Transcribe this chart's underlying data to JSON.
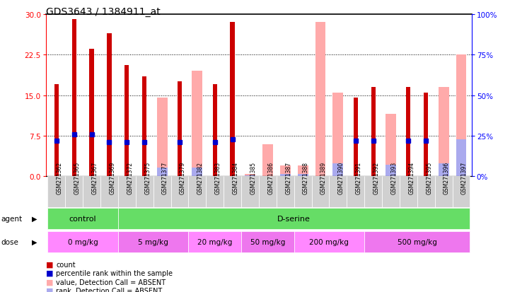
{
  "title": "GDS3643 / 1384911_at",
  "samples": [
    "GSM271362",
    "GSM271365",
    "GSM271367",
    "GSM271369",
    "GSM271372",
    "GSM271375",
    "GSM271377",
    "GSM271379",
    "GSM271382",
    "GSM271383",
    "GSM271384",
    "GSM271385",
    "GSM271386",
    "GSM271387",
    "GSM271388",
    "GSM271389",
    "GSM271390",
    "GSM271391",
    "GSM271392",
    "GSM271393",
    "GSM271394",
    "GSM271395",
    "GSM271396",
    "GSM271397"
  ],
  "count": [
    17.0,
    29.0,
    23.5,
    26.5,
    20.5,
    18.5,
    null,
    17.5,
    null,
    17.0,
    28.5,
    null,
    null,
    null,
    null,
    null,
    null,
    14.5,
    16.5,
    null,
    16.5,
    15.5,
    null,
    null
  ],
  "rank": [
    22,
    26,
    26,
    21,
    21,
    21,
    null,
    21,
    null,
    21,
    23,
    null,
    null,
    null,
    null,
    null,
    null,
    22,
    22,
    null,
    22,
    22,
    null,
    null
  ],
  "absent_value": [
    null,
    null,
    null,
    null,
    null,
    null,
    14.5,
    null,
    19.5,
    null,
    null,
    0.5,
    6.0,
    2.0,
    2.0,
    28.5,
    15.5,
    null,
    null,
    11.5,
    null,
    null,
    16.5,
    22.5
  ],
  "absent_rank": [
    null,
    null,
    null,
    null,
    null,
    null,
    5.5,
    null,
    5.5,
    null,
    null,
    0.5,
    null,
    1.5,
    1.5,
    null,
    8.0,
    null,
    null,
    7.0,
    null,
    null,
    8.0,
    23.0
  ],
  "ylim_left": [
    0,
    30
  ],
  "ylim_right": [
    0,
    100
  ],
  "yticks_left": [
    0,
    7.5,
    15,
    22.5,
    30
  ],
  "yticks_right": [
    0,
    25,
    50,
    75,
    100
  ],
  "count_color": "#cc0000",
  "absent_value_color": "#ffaaaa",
  "rank_color": "#0000cc",
  "absent_rank_color": "#aaaaee",
  "agent_color": "#66dd66",
  "dose_colors": [
    "#ff88ff",
    "#ee77ee",
    "#ff88ff",
    "#ee77ee",
    "#ff88ff",
    "#ee77ee"
  ],
  "dose_labels": [
    "0 mg/kg",
    "5 mg/kg",
    "20 mg/kg",
    "50 mg/kg",
    "200 mg/kg",
    "500 mg/kg"
  ],
  "dose_starts": [
    0,
    4,
    8,
    11,
    14,
    18
  ],
  "dose_widths": [
    4,
    4,
    3,
    3,
    4,
    6
  ]
}
